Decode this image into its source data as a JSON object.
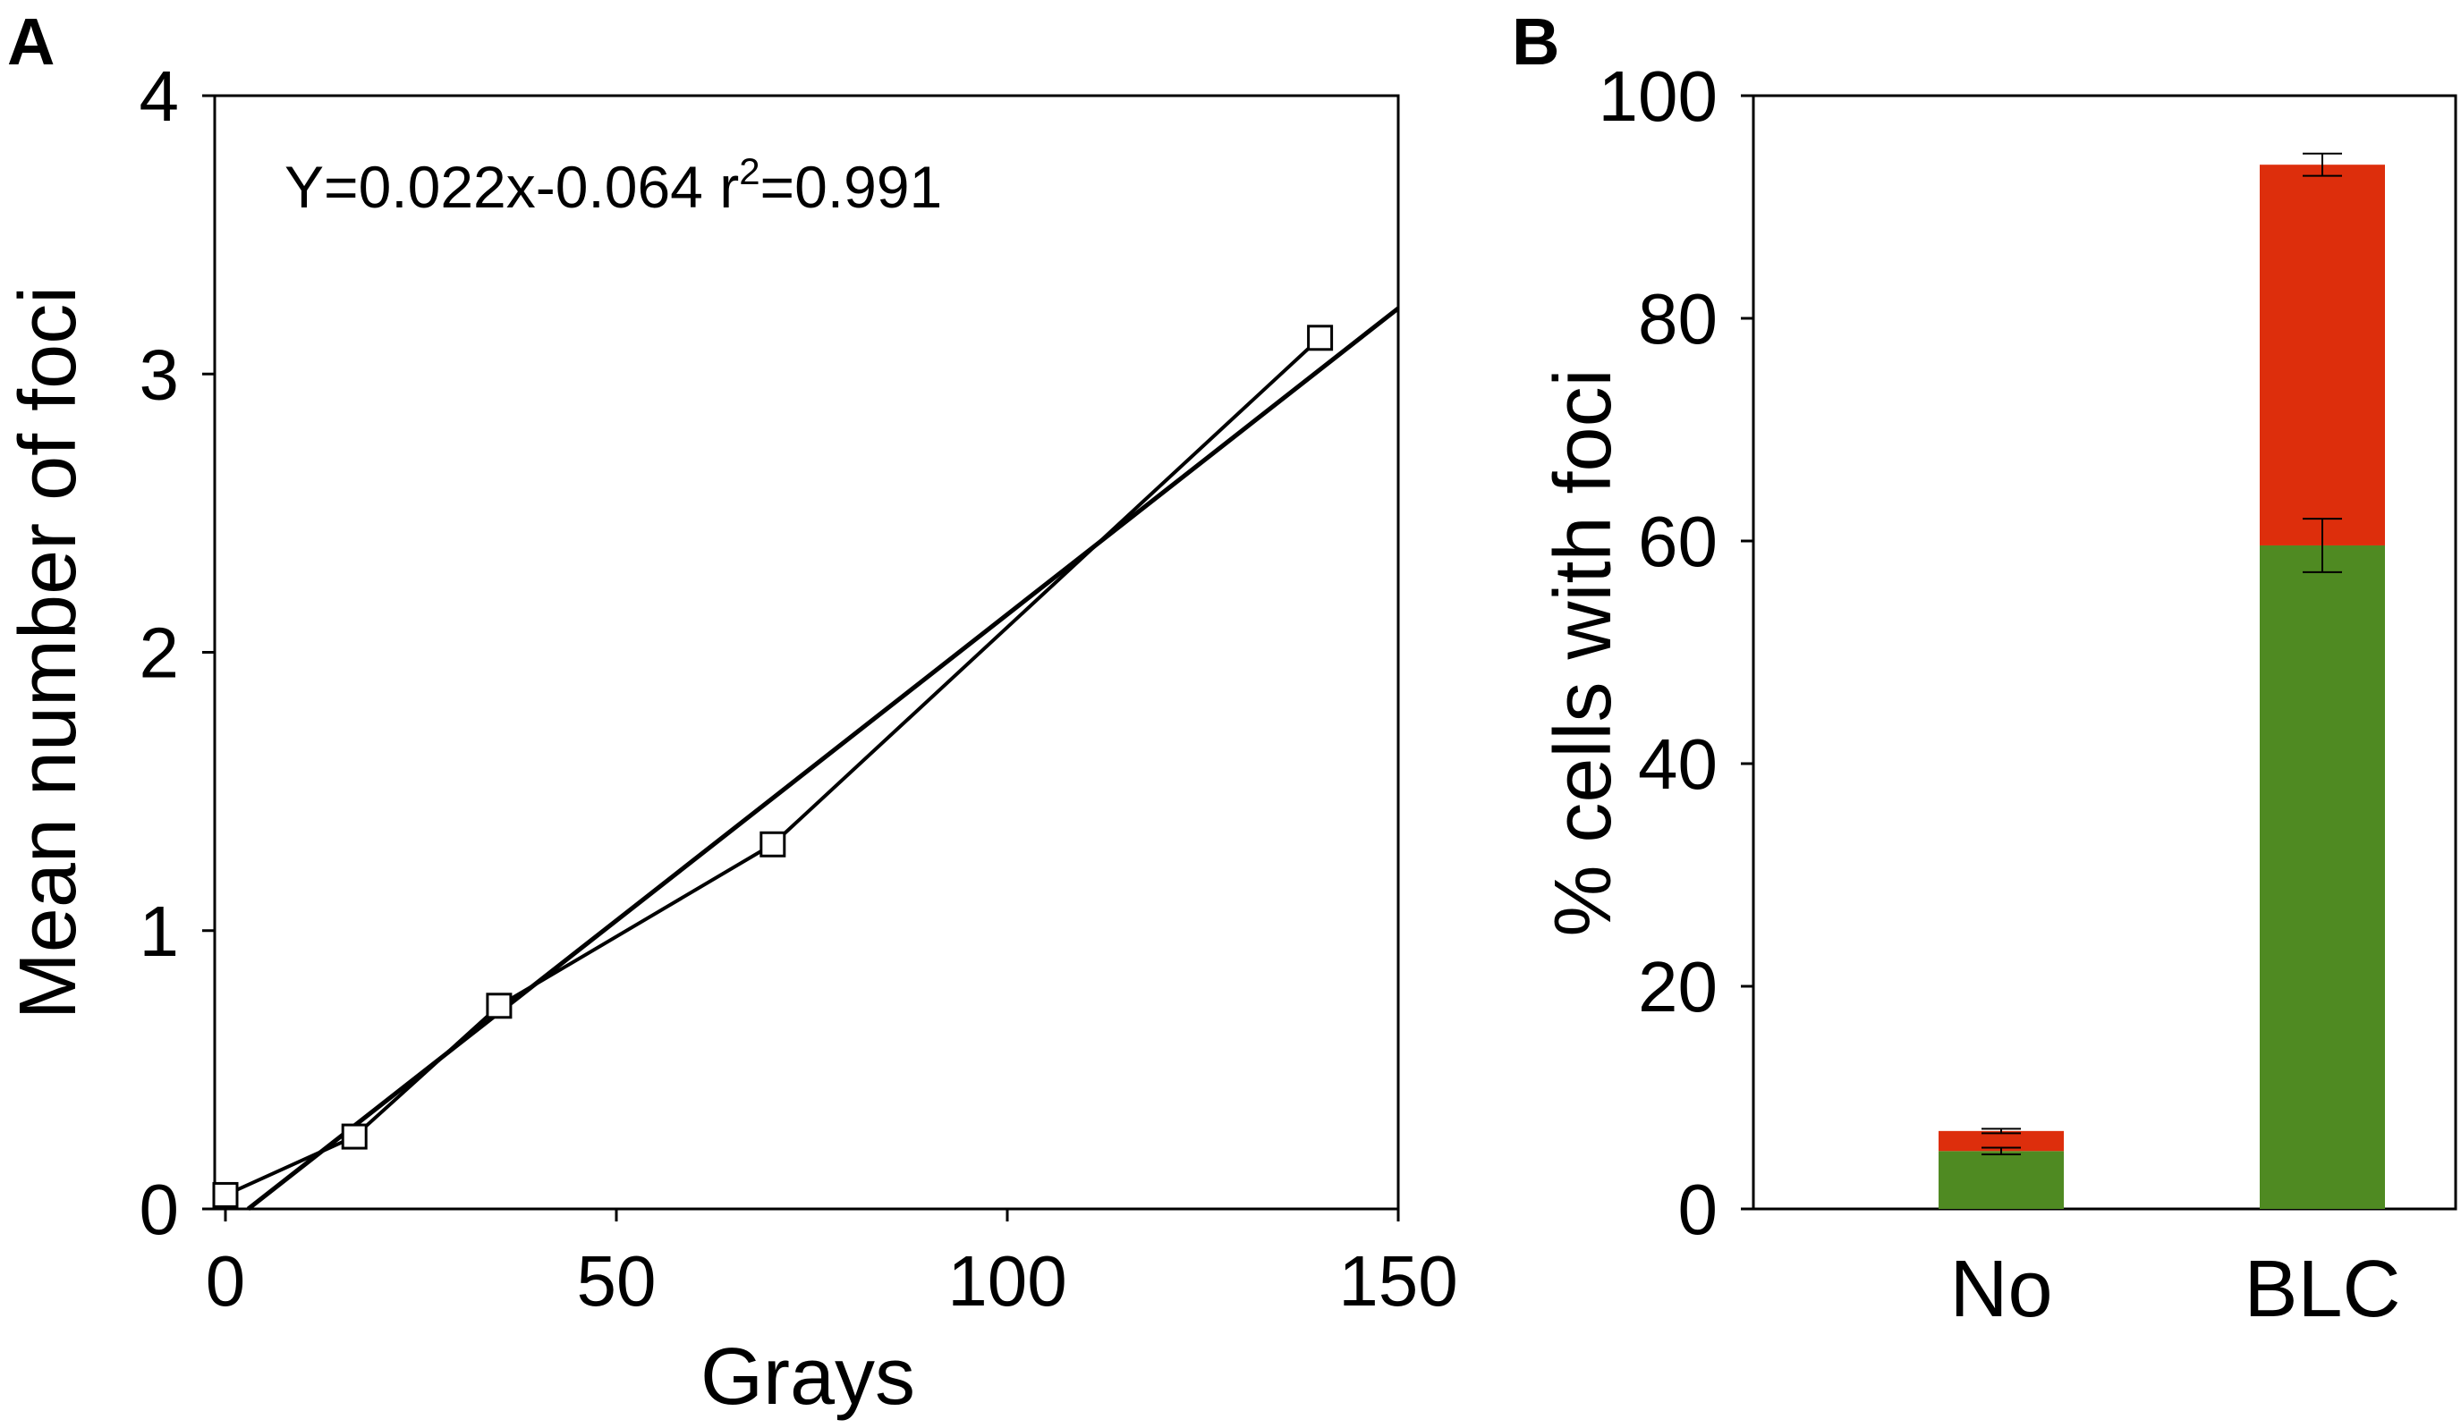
{
  "chart_data": [
    {
      "panel": "A",
      "type": "line",
      "xlabel": "Grays",
      "ylabel": "Mean number of foci",
      "xlim": [
        0,
        150
      ],
      "ylim": [
        0,
        4
      ],
      "xticks": [
        "0",
        "50",
        "100",
        "150"
      ],
      "yticks": [
        "0",
        "1",
        "2",
        "3",
        "4"
      ],
      "annotation": {
        "prefix": "Y=0.022x-0.064 r",
        "sup": "2",
        "suffix": "=0.991"
      },
      "series": [
        {
          "x": [
            0,
            16.5,
            35,
            70,
            140
          ],
          "y": [
            0.05,
            0.26,
            0.73,
            1.31,
            3.13
          ],
          "marker": "open-square"
        }
      ],
      "fit": {
        "slope": 0.022,
        "intercept": -0.064,
        "x_range": [
          0,
          150
        ]
      }
    },
    {
      "panel": "B",
      "type": "bar",
      "stacked": true,
      "ylabel": "% cells with foci",
      "ylim": [
        0,
        100
      ],
      "yticks": [
        "0",
        "20",
        "40",
        "60",
        "80",
        "100"
      ],
      "categories": [
        "No",
        "BLC"
      ],
      "series": [
        {
          "values": [
            5.2,
            59.6
          ],
          "errors": [
            0.3,
            2.4
          ],
          "color": "#4f8a22"
        },
        {
          "values": [
            1.8,
            34.2
          ],
          "errors": [
            0.2,
            1.0
          ],
          "color": "#dd2e0c"
        }
      ]
    }
  ]
}
